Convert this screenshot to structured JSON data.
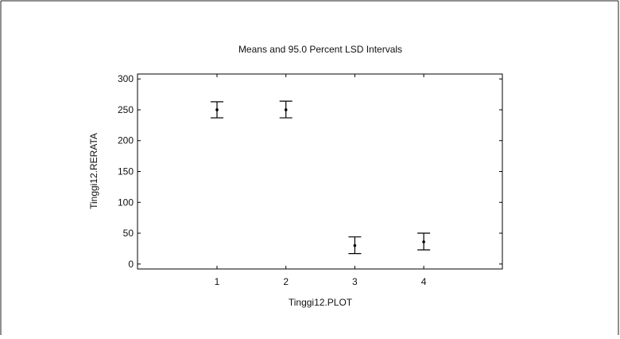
{
  "chart_data": {
    "type": "scatter",
    "title": "Means and 95.0 Percent LSD Intervals",
    "xlabel": "Tinggi12.PLOT",
    "ylabel": "Tinggi12.RERATA",
    "categories": [
      "1",
      "2",
      "3",
      "4"
    ],
    "means": [
      250,
      250,
      30,
      36
    ],
    "lower": [
      237,
      237,
      17,
      23
    ],
    "upper": [
      263,
      264,
      44,
      50
    ],
    "ylim": [
      -8,
      308
    ],
    "yticks": [
      0,
      50,
      100,
      150,
      200,
      250,
      300
    ],
    "grid": false,
    "colors": {
      "line": "#000000",
      "frame": "#000000"
    }
  }
}
